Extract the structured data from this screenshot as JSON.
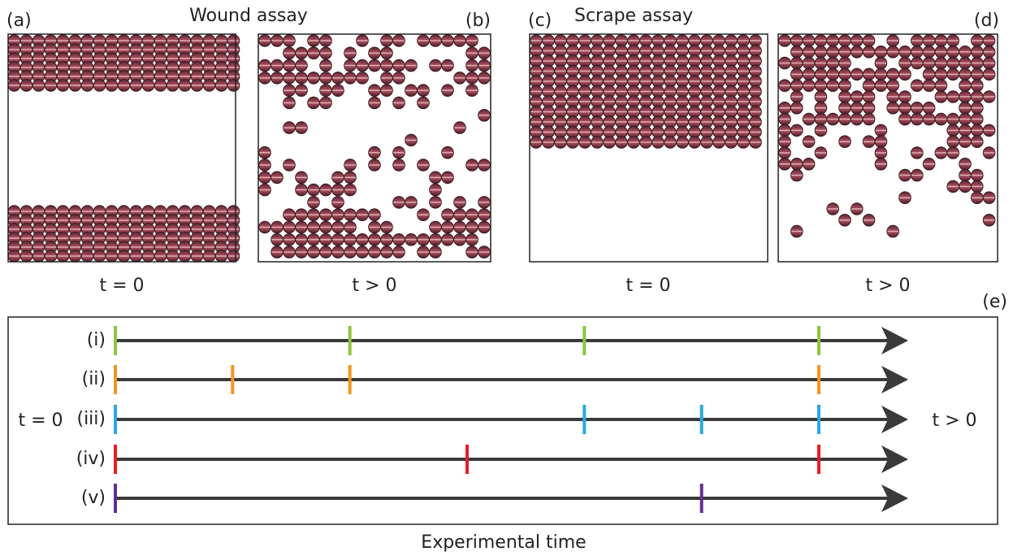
{
  "titles": {
    "wound": "Wound assay",
    "scrape": "Scrape assay"
  },
  "panels": [
    {
      "label": "(a)",
      "caption": "t = 0"
    },
    {
      "label": "(b)",
      "caption": "t > 0"
    },
    {
      "label": "(c)",
      "caption": "t = 0"
    },
    {
      "label": "(d)",
      "caption": "t > 0"
    }
  ],
  "timeline": {
    "label": "(e)",
    "start": "t = 0",
    "end": "t > 0",
    "axis": "Experimental time",
    "rows": [
      {
        "label": "(i)",
        "color": "#8cc63f",
        "times": [
          0,
          2,
          4,
          6
        ]
      },
      {
        "label": "(ii)",
        "color": "#f7941d",
        "times": [
          0,
          1,
          2,
          6
        ]
      },
      {
        "label": "(iii)",
        "color": "#27aae1",
        "times": [
          0,
          4,
          5,
          6
        ]
      },
      {
        "label": "(iv)",
        "color": "#ed1c24",
        "times": [
          0,
          3,
          6
        ]
      },
      {
        "label": "(v)",
        "color": "#662d91",
        "times": [
          0,
          5
        ]
      }
    ]
  }
}
